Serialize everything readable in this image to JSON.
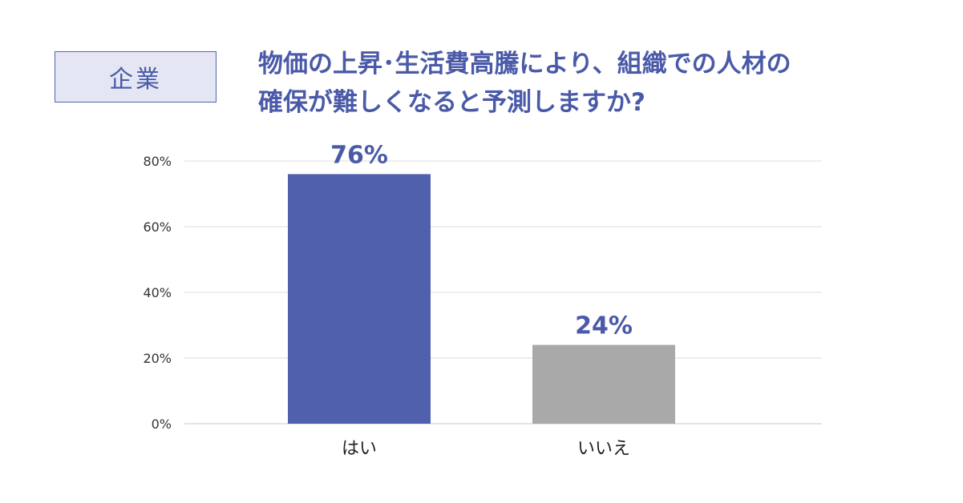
{
  "header": {
    "tag": "企業",
    "question_line1": "物価の上昇･生活費高騰により、組織での人材の",
    "question_line2": "確保が難しくなると予測しますか?"
  },
  "colors": {
    "accent": "#4a5aa8",
    "bar_yes": "#5060ad",
    "bar_no": "#a9a9a9",
    "tag_bg": "#e4e6f3",
    "grid": "#dcdcdc"
  },
  "chart_data": {
    "type": "bar",
    "categories": [
      "はい",
      "いいえ"
    ],
    "values": [
      76,
      24
    ],
    "value_labels": [
      "76%",
      "24%"
    ],
    "bar_colors": [
      "#5060ad",
      "#a9a9a9"
    ],
    "yticks": [
      0,
      20,
      40,
      60,
      80
    ],
    "ytick_labels": [
      "0%",
      "20%",
      "40%",
      "60%",
      "80%"
    ],
    "ylim": [
      0,
      80
    ],
    "grid": true,
    "legend": "none"
  }
}
